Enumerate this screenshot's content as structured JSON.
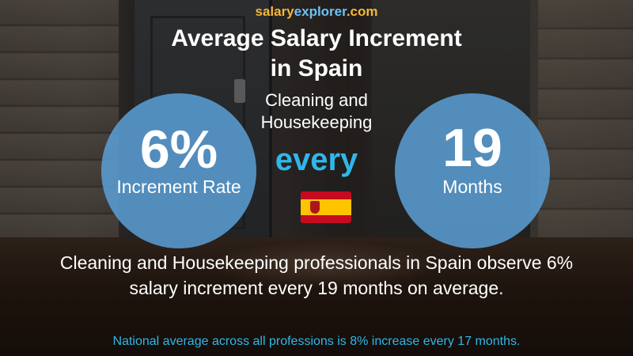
{
  "brand": {
    "part1": "salary",
    "part2": "explorer",
    "part3": ".com",
    "salary_color": "#f6b73c",
    "explorer_color": "#6ec1f5"
  },
  "header": {
    "title_line1": "Average Salary Increment",
    "title_line2": "in Spain",
    "subtitle_line1": "Cleaning and",
    "subtitle_line2": "Housekeeping"
  },
  "stats": {
    "increment_value": "6%",
    "increment_label": "Increment Rate",
    "connector": "every",
    "period_value": "19",
    "period_label": "Months"
  },
  "flag": {
    "country": "Spain",
    "icon": "spain-flag-icon"
  },
  "description": {
    "line1": "Cleaning and Housekeeping professionals in Spain observe 6%",
    "line2": "salary increment every 19 months on average."
  },
  "footnote": "National average across all professions is 8% increase every 17 months.",
  "colors": {
    "circle": "#5ba0d7",
    "accent": "#2fb7e9",
    "text": "#ffffff"
  }
}
